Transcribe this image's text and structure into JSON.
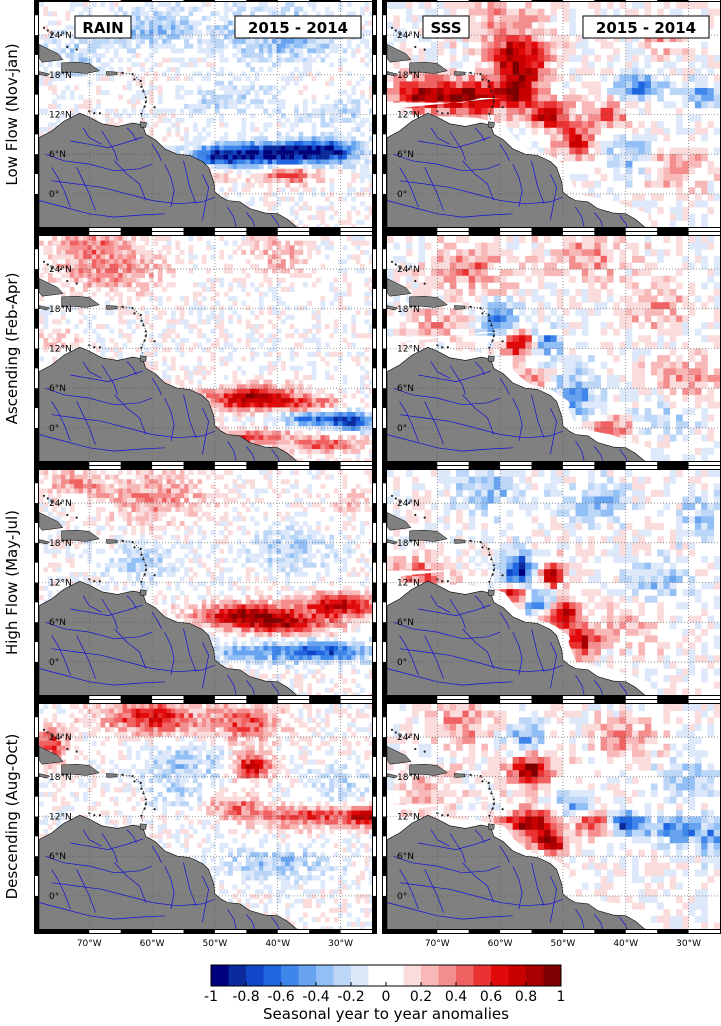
{
  "chart_data": {
    "type": "heatmap",
    "colorbar": {
      "label": "Seasonal year to year anomalies",
      "ticks": [
        "-1",
        "-0.8",
        "-0.6",
        "-0.4",
        "-0.2",
        "0",
        "0.2",
        "0.4",
        "0.6",
        "0.8",
        "1"
      ],
      "range": [
        -1,
        1
      ],
      "colors_low_to_high": [
        "#00007f",
        "#0a2a9e",
        "#1047c8",
        "#1f66e0",
        "#3f86ea",
        "#68a3f0",
        "#92bff5",
        "#bcd6f8",
        "#dde9fb",
        "#ffffff",
        "#ffffff",
        "#fbdcdc",
        "#f8b8b8",
        "#f48e8e",
        "#f06262",
        "#ea3232",
        "#e00a0a",
        "#c80000",
        "#a80000",
        "#7f0000"
      ]
    },
    "x_axis": {
      "ticks": [
        "70°W",
        "60°W",
        "50°W",
        "40°W",
        "30°W"
      ],
      "range_deg_east": [
        -78,
        -25
      ]
    },
    "y_axis": {
      "ticks": [
        "0°",
        "6°N",
        "12°N",
        "18°N",
        "24°N"
      ],
      "range_deg_north": [
        -5,
        29
      ]
    },
    "columns": [
      {
        "variable": "RAIN",
        "comparison": "2015 - 2014"
      },
      {
        "variable": "SSS",
        "comparison": "2015 - 2014"
      }
    ],
    "rows": [
      {
        "season": "Low Flow (Nov-jan)"
      },
      {
        "season": "Ascending (Feb-Apr)"
      },
      {
        "season": "High Flow (May-Jul)"
      },
      {
        "season": "Descending (Aug-Oct)"
      }
    ],
    "features": {
      "RAIN": [
        [
          {
            "lon": -42,
            "lat": 6,
            "v": -0.9,
            "rlon": 9,
            "rlat": 1.8
          },
          {
            "lon": -32,
            "lat": 6.5,
            "v": -0.7,
            "rlon": 6,
            "rlat": 1.8
          },
          {
            "lon": -50,
            "lat": 5.5,
            "v": -0.5,
            "rlon": 4,
            "rlat": 1.5
          },
          {
            "lon": -38,
            "lat": 3,
            "v": 0.5,
            "rlon": 5,
            "rlat": 1.3
          },
          {
            "lon": -40,
            "lat": 24,
            "v": -0.35,
            "rlon": 10,
            "rlat": 4
          },
          {
            "lon": -60,
            "lat": 25,
            "v": -0.3,
            "rlon": 8,
            "rlat": 3
          },
          {
            "lon": -72,
            "lat": 21,
            "v": -0.2,
            "rlon": 5,
            "rlat": 3
          },
          {
            "lon": -48,
            "lat": 14,
            "v": -0.2,
            "rlon": 8,
            "rlat": 3
          },
          {
            "lon": -30,
            "lat": 12,
            "v": -0.25,
            "rlon": 5,
            "rlat": 2
          },
          {
            "lon": -52,
            "lat": 3,
            "v": 0.3,
            "rlon": 4,
            "rlat": 1.5
          }
        ],
        [
          {
            "lon": -44,
            "lat": 4.5,
            "v": 0.85,
            "rlon": 7,
            "rlat": 1.8
          },
          {
            "lon": -35,
            "lat": 3.5,
            "v": 0.4,
            "rlon": 6,
            "rlat": 1.3
          },
          {
            "lon": -33,
            "lat": 1.5,
            "v": -0.7,
            "rlon": 7,
            "rlat": 1.2
          },
          {
            "lon": -28,
            "lat": 0.5,
            "v": -0.5,
            "rlon": 3,
            "rlat": 1.2
          },
          {
            "lon": -45,
            "lat": -1.5,
            "v": 0.5,
            "rlon": 7,
            "rlat": 1.2
          },
          {
            "lon": -32,
            "lat": -2.5,
            "v": 0.5,
            "rlon": 6,
            "rlat": 1.2
          },
          {
            "lon": -67,
            "lat": 24,
            "v": 0.35,
            "rlon": 9,
            "rlat": 3.5
          },
          {
            "lon": -70,
            "lat": 28,
            "v": 0.3,
            "rlon": 6,
            "rlat": 2
          },
          {
            "lon": -40,
            "lat": 26,
            "v": 0.25,
            "rlon": 5,
            "rlat": 3
          },
          {
            "lon": -75,
            "lat": 13,
            "v": 0.2,
            "rlon": 3,
            "rlat": 2
          }
        ],
        [
          {
            "lon": -45,
            "lat": 7,
            "v": 0.85,
            "rlon": 8,
            "rlat": 1.8
          },
          {
            "lon": -30,
            "lat": 8.5,
            "v": 0.75,
            "rlon": 6,
            "rlat": 1.8
          },
          {
            "lon": -38,
            "lat": 5.5,
            "v": 0.55,
            "rlon": 7,
            "rlat": 1.4
          },
          {
            "lon": -33,
            "lat": 1.5,
            "v": -0.7,
            "rlon": 8,
            "rlat": 1.5
          },
          {
            "lon": -45,
            "lat": 1.5,
            "v": -0.35,
            "rlon": 6,
            "rlat": 1.4
          },
          {
            "lon": -60,
            "lat": 25,
            "v": 0.35,
            "rlon": 8,
            "rlat": 3.5
          },
          {
            "lon": -72,
            "lat": 27,
            "v": 0.3,
            "rlon": 5,
            "rlat": 2
          },
          {
            "lon": -38,
            "lat": 17,
            "v": -0.25,
            "rlon": 7,
            "rlat": 3
          },
          {
            "lon": -62,
            "lat": 15,
            "v": -0.25,
            "rlon": 6,
            "rlat": 2.5
          },
          {
            "lon": -28,
            "lat": 24,
            "v": 0.2,
            "rlon": 3,
            "rlat": 2
          }
        ],
        [
          {
            "lon": -60,
            "lat": 27,
            "v": 0.65,
            "rlon": 8,
            "rlat": 2.5
          },
          {
            "lon": -45,
            "lat": 26,
            "v": 0.5,
            "rlon": 5,
            "rlat": 2.5
          },
          {
            "lon": -44,
            "lat": 19.5,
            "v": 0.75,
            "rlon": 3,
            "rlat": 2
          },
          {
            "lon": -76,
            "lat": 23,
            "v": 0.55,
            "rlon": 2.5,
            "rlat": 2.5
          },
          {
            "lon": -36,
            "lat": 12,
            "v": 0.55,
            "rlon": 9,
            "rlat": 1.5
          },
          {
            "lon": -26,
            "lat": 12,
            "v": 0.7,
            "rlon": 3,
            "rlat": 1.5
          },
          {
            "lon": -47,
            "lat": 13.5,
            "v": 0.4,
            "rlon": 4,
            "rlat": 1.5
          },
          {
            "lon": -55,
            "lat": 20,
            "v": -0.3,
            "rlon": 6,
            "rlat": 3
          },
          {
            "lon": -40,
            "lat": 5,
            "v": -0.3,
            "rlon": 9,
            "rlat": 2.5
          },
          {
            "lon": -30,
            "lat": 17,
            "v": -0.2,
            "rlon": 5,
            "rlat": 3
          },
          {
            "lon": -56,
            "lat": 15,
            "v": -0.2,
            "rlon": 4,
            "rlat": 2
          }
        ]
      ],
      "SSS": [
        [
          {
            "lon": -72,
            "lat": 15,
            "v": 0.9,
            "rlon": 5,
            "rlat": 2.5
          },
          {
            "lon": -64,
            "lat": 14.5,
            "v": 0.9,
            "rlon": 4,
            "rlat": 2.5
          },
          {
            "lon": -57,
            "lat": 16,
            "v": 0.85,
            "rlon": 3.5,
            "rlat": 3.5
          },
          {
            "lon": -57,
            "lat": 21,
            "v": 0.75,
            "rlon": 5,
            "rlat": 3
          },
          {
            "lon": -52,
            "lat": 12,
            "v": 0.8,
            "rlon": 3,
            "rlat": 2
          },
          {
            "lon": -48,
            "lat": 8,
            "v": 0.65,
            "rlon": 3,
            "rlat": 2.5
          },
          {
            "lon": -43,
            "lat": 12,
            "v": 0.45,
            "rlon": 4,
            "rlat": 2
          },
          {
            "lon": -38,
            "lat": 16,
            "v": -0.6,
            "rlon": 3.5,
            "rlat": 2
          },
          {
            "lon": -28,
            "lat": 15,
            "v": -0.5,
            "rlon": 3,
            "rlat": 2
          },
          {
            "lon": -32,
            "lat": 4,
            "v": 0.4,
            "rlon": 4,
            "rlat": 3
          },
          {
            "lon": -60,
            "lat": 26,
            "v": 0.35,
            "rlon": 6,
            "rlat": 3
          },
          {
            "lon": -34,
            "lat": 24,
            "v": 0.3,
            "rlon": 4,
            "rlat": 3
          },
          {
            "lon": -40,
            "lat": 6,
            "v": -0.3,
            "rlon": 4,
            "rlat": 3
          }
        ],
        [
          {
            "lon": -57,
            "lat": 13,
            "v": 0.85,
            "rlon": 2.5,
            "rlat": 2
          },
          {
            "lon": -60,
            "lat": 16,
            "v": -0.6,
            "rlon": 3,
            "rlat": 2.5
          },
          {
            "lon": -53,
            "lat": 13,
            "v": -0.55,
            "rlon": 2.5,
            "rlat": 2
          },
          {
            "lon": -55,
            "lat": 7,
            "v": 0.4,
            "rlon": 3,
            "rlat": 2
          },
          {
            "lon": -48,
            "lat": 5,
            "v": -0.45,
            "rlon": 4,
            "rlat": 4
          },
          {
            "lon": -42,
            "lat": 0,
            "v": 0.5,
            "rlon": 4,
            "rlat": 2
          },
          {
            "lon": -65,
            "lat": 24,
            "v": 0.4,
            "rlon": 6,
            "rlat": 3
          },
          {
            "lon": -70,
            "lat": 16,
            "v": 0.3,
            "rlon": 4,
            "rlat": 2.5
          },
          {
            "lon": -45,
            "lat": 26,
            "v": 0.35,
            "rlon": 6,
            "rlat": 3
          },
          {
            "lon": -35,
            "lat": 18,
            "v": 0.3,
            "rlon": 5,
            "rlat": 3
          },
          {
            "lon": -30,
            "lat": 8,
            "v": 0.35,
            "rlon": 5,
            "rlat": 3
          },
          {
            "lon": -35,
            "lat": 1,
            "v": -0.3,
            "rlon": 5,
            "rlat": 2
          }
        ],
        [
          {
            "lon": -57,
            "lat": 14,
            "v": -0.9,
            "rlon": 2.5,
            "rlat": 2.5
          },
          {
            "lon": -52,
            "lat": 13,
            "v": 0.8,
            "rlon": 2,
            "rlat": 2
          },
          {
            "lon": -58,
            "lat": 10,
            "v": 0.8,
            "rlon": 2.5,
            "rlat": 1.5
          },
          {
            "lon": -54,
            "lat": 9,
            "v": -0.7,
            "rlon": 2.5,
            "rlat": 2
          },
          {
            "lon": -50,
            "lat": 7,
            "v": 0.85,
            "rlon": 3,
            "rlat": 2
          },
          {
            "lon": -47,
            "lat": 3,
            "v": 0.8,
            "rlon": 2.5,
            "rlat": 2
          },
          {
            "lon": -73,
            "lat": 13,
            "v": 0.5,
            "rlon": 4,
            "rlat": 2.5
          },
          {
            "lon": -62,
            "lat": 26,
            "v": -0.35,
            "rlon": 5,
            "rlat": 3
          },
          {
            "lon": -45,
            "lat": 24,
            "v": -0.35,
            "rlon": 5,
            "rlat": 3
          },
          {
            "lon": -35,
            "lat": 12,
            "v": -0.3,
            "rlon": 5,
            "rlat": 3
          },
          {
            "lon": -28,
            "lat": 22,
            "v": -0.3,
            "rlon": 3,
            "rlat": 3
          },
          {
            "lon": -40,
            "lat": 5,
            "v": 0.25,
            "rlon": 5,
            "rlat": 3
          }
        ],
        [
          {
            "lon": -55,
            "lat": 19,
            "v": 0.9,
            "rlon": 3.5,
            "rlat": 2.5
          },
          {
            "lon": -55,
            "lat": 11,
            "v": 0.95,
            "rlon": 4,
            "rlat": 2
          },
          {
            "lon": -52,
            "lat": 8,
            "v": 0.85,
            "rlon": 3,
            "rlat": 1.5
          },
          {
            "lon": -45,
            "lat": 11,
            "v": 0.7,
            "rlon": 3,
            "rlat": 2
          },
          {
            "lon": -40,
            "lat": 11,
            "v": -0.85,
            "rlon": 3,
            "rlat": 1.8
          },
          {
            "lon": -32,
            "lat": 10,
            "v": -0.5,
            "rlon": 4,
            "rlat": 2
          },
          {
            "lon": -26,
            "lat": 9,
            "v": -0.45,
            "rlon": 3,
            "rlat": 2.5
          },
          {
            "lon": -56,
            "lat": 24,
            "v": -0.45,
            "rlon": 3,
            "rlat": 2.5
          },
          {
            "lon": -48,
            "lat": 14,
            "v": -0.45,
            "rlon": 2.5,
            "rlat": 2
          },
          {
            "lon": -66,
            "lat": 26,
            "v": 0.35,
            "rlon": 5,
            "rlat": 3
          },
          {
            "lon": -40,
            "lat": 24,
            "v": 0.35,
            "rlon": 5,
            "rlat": 3
          },
          {
            "lon": -72,
            "lat": 16,
            "v": 0.35,
            "rlon": 4,
            "rlat": 3
          },
          {
            "lon": -30,
            "lat": 18,
            "v": -0.25,
            "rlon": 5,
            "rlat": 3
          }
        ]
      ]
    }
  }
}
